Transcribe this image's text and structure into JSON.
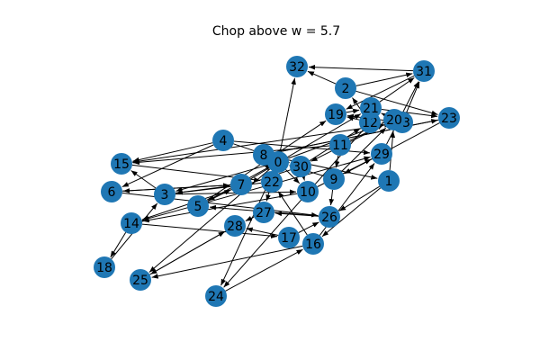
{
  "diagram": {
    "title": "Chop above w = 5.7",
    "node_color": "#1f77b4",
    "edge_color": "#000000",
    "directed": true,
    "nodes": [
      "0",
      "1",
      "2",
      "3",
      "4",
      "5",
      "6",
      "7",
      "8",
      "9",
      "10",
      "11",
      "12",
      "13",
      "14",
      "15",
      "16",
      "17",
      "18",
      "19",
      "20",
      "21",
      "22",
      "23",
      "24",
      "25",
      "26",
      "27",
      "28",
      "29",
      "30",
      "31",
      "32"
    ],
    "edges": [
      [
        "31",
        "32"
      ],
      [
        "2",
        "31"
      ],
      [
        "2",
        "23"
      ],
      [
        "2",
        "32"
      ],
      [
        "31",
        "19"
      ],
      [
        "21",
        "23"
      ],
      [
        "21",
        "31"
      ],
      [
        "4",
        "15"
      ],
      [
        "4",
        "6"
      ],
      [
        "4",
        "29"
      ],
      [
        "4",
        "30"
      ],
      [
        "8",
        "23"
      ],
      [
        "8",
        "1"
      ],
      [
        "8",
        "22"
      ],
      [
        "0",
        "32"
      ],
      [
        "0",
        "20"
      ],
      [
        "0",
        "5"
      ],
      [
        "0",
        "3"
      ],
      [
        "0",
        "25"
      ],
      [
        "0",
        "24"
      ],
      [
        "0",
        "10"
      ],
      [
        "15",
        "22"
      ],
      [
        "15",
        "13"
      ],
      [
        "3",
        "15"
      ],
      [
        "3",
        "7"
      ],
      [
        "3",
        "10"
      ],
      [
        "6",
        "7"
      ],
      [
        "6",
        "26"
      ],
      [
        "14",
        "18"
      ],
      [
        "14",
        "17"
      ],
      [
        "14",
        "29"
      ],
      [
        "5",
        "19"
      ],
      [
        "5",
        "7"
      ],
      [
        "7",
        "21"
      ],
      [
        "7",
        "6"
      ],
      [
        "9",
        "20"
      ],
      [
        "9",
        "26"
      ],
      [
        "9",
        "0"
      ],
      [
        "10",
        "29"
      ],
      [
        "10",
        "14"
      ],
      [
        "11",
        "20"
      ],
      [
        "11",
        "15"
      ],
      [
        "12",
        "19"
      ],
      [
        "12",
        "2"
      ],
      [
        "12",
        "24"
      ],
      [
        "13",
        "19"
      ],
      [
        "13",
        "12"
      ],
      [
        "1",
        "26"
      ],
      [
        "1",
        "16"
      ],
      [
        "1",
        "20"
      ],
      [
        "16",
        "22"
      ],
      [
        "16",
        "29"
      ],
      [
        "16",
        "25"
      ],
      [
        "17",
        "28"
      ],
      [
        "17",
        "26"
      ],
      [
        "19",
        "21"
      ],
      [
        "20",
        "30"
      ],
      [
        "22",
        "27"
      ],
      [
        "22",
        "3"
      ],
      [
        "23",
        "9"
      ],
      [
        "23",
        "8"
      ],
      [
        "26",
        "27"
      ],
      [
        "26",
        "5"
      ],
      [
        "27",
        "28"
      ],
      [
        "28",
        "25"
      ],
      [
        "29",
        "9"
      ],
      [
        "29",
        "31"
      ],
      [
        "30",
        "14"
      ],
      [
        "30",
        "10"
      ],
      [
        "30",
        "12"
      ],
      [
        "25",
        "28"
      ],
      [
        "24",
        "16"
      ],
      [
        "18",
        "3"
      ],
      [
        "21",
        "12"
      ],
      [
        "20",
        "21"
      ],
      [
        "13",
        "31"
      ],
      [
        "11",
        "9"
      ]
    ]
  }
}
